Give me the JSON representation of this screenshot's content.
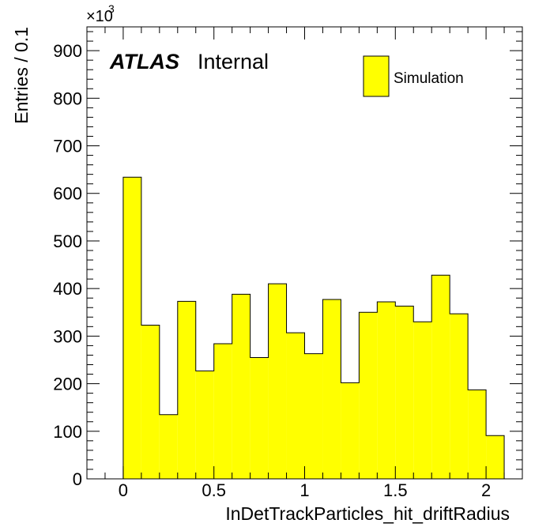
{
  "chart_data": {
    "type": "bar",
    "style": "histogram",
    "bin_width": 0.1,
    "bins_low_edges": [
      0.0,
      0.1,
      0.2,
      0.3,
      0.4,
      0.5,
      0.6,
      0.7,
      0.8,
      0.9,
      1.0,
      1.1,
      1.2,
      1.3,
      1.4,
      1.5,
      1.6,
      1.7,
      1.8,
      1.9,
      2.0
    ],
    "values": [
      634,
      323,
      135,
      373,
      227,
      284,
      388,
      255,
      410,
      307,
      263,
      377,
      202,
      350,
      372,
      363,
      330,
      428,
      347,
      187,
      91
    ],
    "xlabel": "InDetTrackParticles_hit_driftRadius",
    "ylabel": "Entries / 0.1",
    "y_multiplier_base": "×10",
    "y_multiplier_exp": "3",
    "xlim": [
      -0.2,
      2.2
    ],
    "ylim": [
      0,
      950
    ],
    "x_ticks": [
      0,
      0.5,
      1,
      1.5,
      2
    ],
    "x_tick_labels": [
      "0",
      "0.5",
      "1",
      "1.5",
      "2"
    ],
    "y_ticks": [
      0,
      100,
      200,
      300,
      400,
      500,
      600,
      700,
      800,
      900
    ],
    "y_tick_labels": [
      "0",
      "100",
      "200",
      "300",
      "400",
      "500",
      "600",
      "700",
      "800",
      "900"
    ],
    "fill_color": "#ffff00",
    "line_color": "#000000",
    "grid": false,
    "legend": {
      "placement": "top-right",
      "entries": [
        "Simulation"
      ]
    },
    "annotation": {
      "bold": "ATLAS",
      "regular": "Internal"
    }
  }
}
